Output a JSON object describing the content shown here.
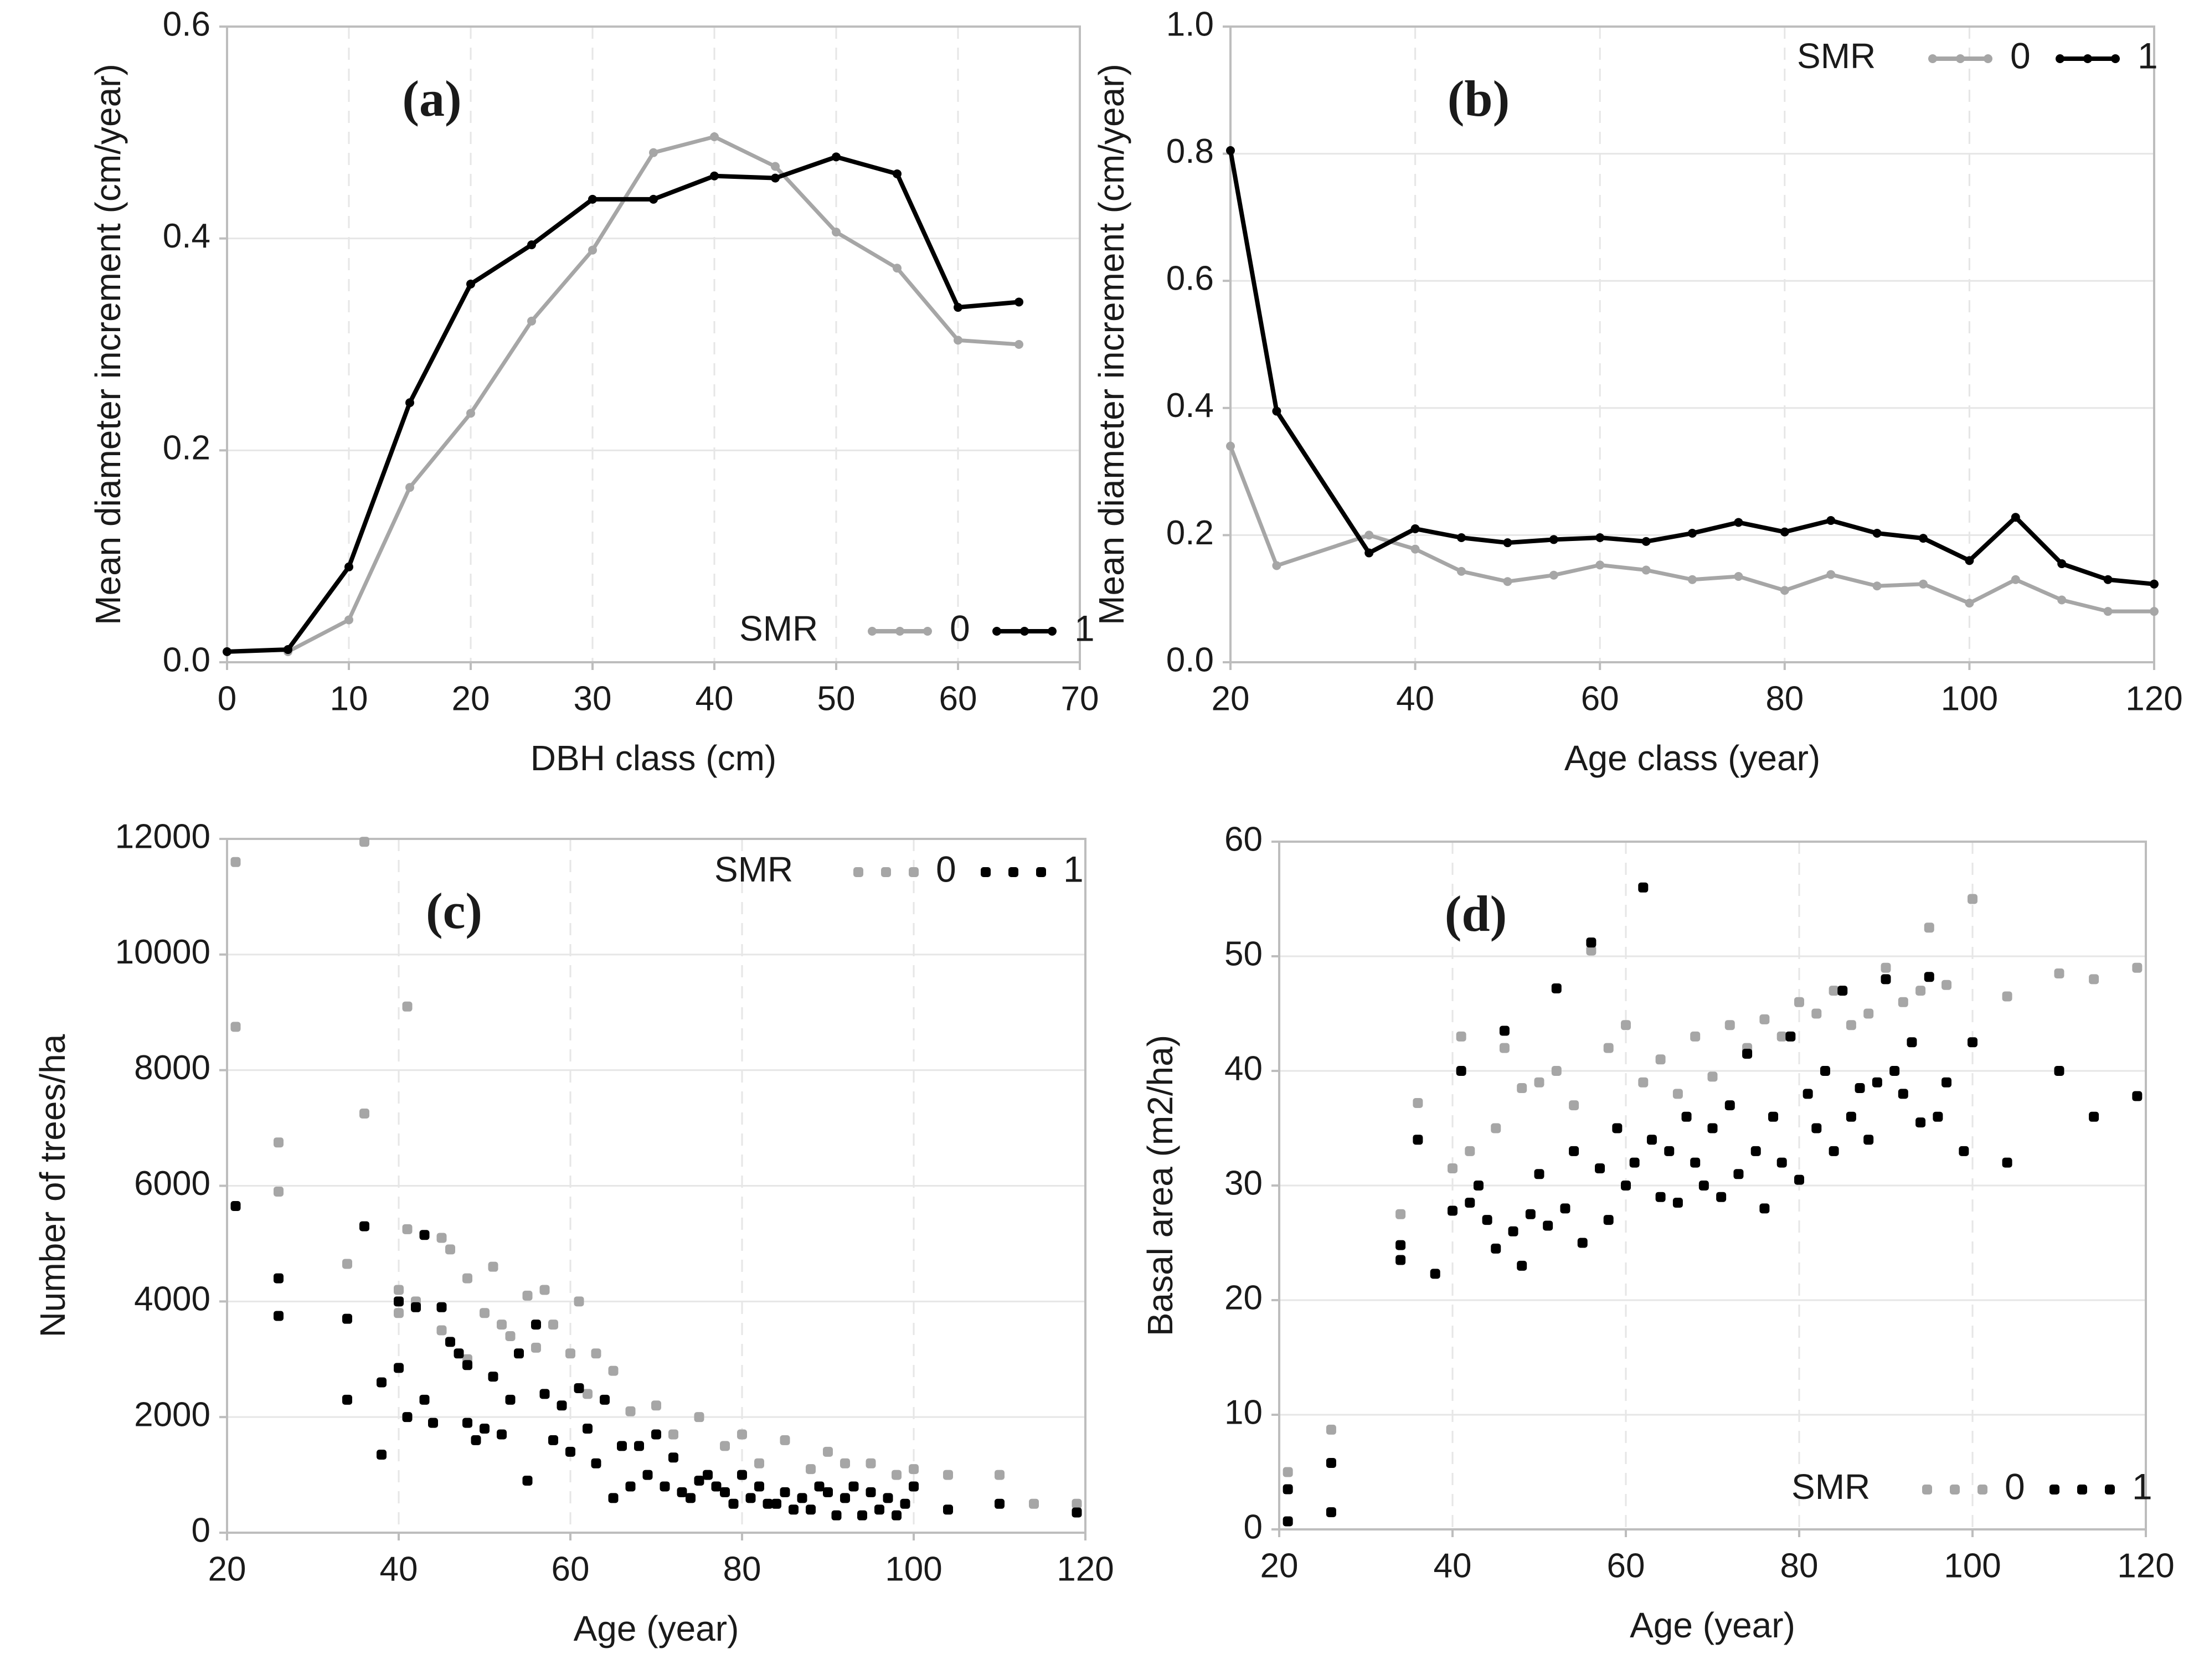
{
  "colors": {
    "smr0": "#a6a6a6",
    "smr1": "#000000",
    "grid": "#e6e6e6",
    "axis": "#bdbdbd",
    "text": "#1a1a1a"
  },
  "chart_data": [
    {
      "id": "a",
      "type": "line",
      "panel_label": "(a)",
      "xlabel": "DBH class (cm)",
      "ylabel": "Mean diameter increment (cm/year)",
      "xlim": [
        0,
        70
      ],
      "ylim": [
        0,
        0.6
      ],
      "xticks": [
        0,
        10,
        20,
        30,
        40,
        50,
        60,
        70
      ],
      "yticks": [
        0,
        0.2,
        0.4,
        0.6
      ],
      "ytick_labels": [
        "0.0",
        "0.2",
        "0.4",
        "0.6"
      ],
      "legend": {
        "title": "SMR",
        "position": "bottom-right",
        "labels": [
          "0",
          "1"
        ]
      },
      "series": [
        {
          "name": "0",
          "x": [
            5,
            10,
            15,
            20,
            25,
            30,
            35,
            40,
            45,
            50,
            55,
            60,
            65
          ],
          "values": [
            0.01,
            0.04,
            0.165,
            0.235,
            0.322,
            0.389,
            0.481,
            0.496,
            0.468,
            0.406,
            0.372,
            0.304,
            0.3
          ]
        },
        {
          "name": "1",
          "x": [
            0,
            5,
            10,
            15,
            20,
            25,
            30,
            35,
            40,
            45,
            50,
            55,
            60,
            65
          ],
          "values": [
            0.01,
            0.012,
            0.09,
            0.245,
            0.357,
            0.394,
            0.437,
            0.437,
            0.459,
            0.457,
            0.477,
            0.461,
            0.335,
            0.34
          ]
        }
      ]
    },
    {
      "id": "b",
      "type": "line",
      "panel_label": "(b)",
      "xlabel": "Age class (year)",
      "ylabel": "Mean diameter increment (cm/year)",
      "xlim": [
        20,
        120
      ],
      "ylim": [
        0,
        1.0
      ],
      "xticks": [
        20,
        40,
        60,
        80,
        100,
        120
      ],
      "yticks": [
        0,
        0.2,
        0.4,
        0.6,
        0.8,
        1.0
      ],
      "ytick_labels": [
        "0.0",
        "0.2",
        "0.4",
        "0.6",
        "0.8",
        "1.0"
      ],
      "legend": {
        "title": "SMR",
        "position": "top-right",
        "labels": [
          "0",
          "1"
        ]
      },
      "series": [
        {
          "name": "0",
          "x": [
            20,
            25,
            35,
            40,
            45,
            50,
            55,
            60,
            65,
            70,
            75,
            80,
            85,
            90,
            95,
            100,
            105,
            110,
            115,
            120
          ],
          "values": [
            0.34,
            0.152,
            0.2,
            0.178,
            0.143,
            0.127,
            0.137,
            0.153,
            0.145,
            0.13,
            0.135,
            0.113,
            0.138,
            0.12,
            0.123,
            0.093,
            0.13,
            0.098,
            0.08,
            0.08
          ]
        },
        {
          "name": "1",
          "x": [
            20,
            25,
            35,
            40,
            45,
            50,
            55,
            60,
            65,
            70,
            75,
            80,
            85,
            90,
            95,
            100,
            105,
            110,
            115,
            120
          ],
          "values": [
            0.805,
            0.395,
            0.172,
            0.21,
            0.196,
            0.188,
            0.193,
            0.196,
            0.19,
            0.203,
            0.22,
            0.205,
            0.223,
            0.203,
            0.195,
            0.16,
            0.228,
            0.155,
            0.13,
            0.123
          ]
        }
      ]
    },
    {
      "id": "c",
      "type": "scatter",
      "panel_label": "(c)",
      "xlabel": "Age (year)",
      "ylabel": "Number of trees/ha",
      "xlim": [
        20,
        120
      ],
      "ylim": [
        0,
        12000
      ],
      "xticks": [
        20,
        40,
        60,
        80,
        100,
        120
      ],
      "yticks": [
        0,
        2000,
        4000,
        6000,
        8000,
        10000,
        12000
      ],
      "ytick_labels": [
        "0",
        "2000",
        "4000",
        "6000",
        "8000",
        "10000",
        "12000"
      ],
      "legend": {
        "title": "SMR",
        "position": "top-right",
        "labels": [
          "0",
          "1"
        ]
      },
      "series": [
        {
          "name": "0",
          "x": [
            21,
            21,
            26,
            26,
            34,
            36,
            36,
            40,
            40,
            41,
            41,
            42,
            45,
            45,
            46,
            48,
            48,
            50,
            51,
            52,
            53,
            55,
            56,
            57,
            58,
            60,
            61,
            62,
            63,
            65,
            67,
            70,
            72,
            75,
            78,
            80,
            82,
            85,
            88,
            90,
            92,
            95,
            98,
            100,
            104,
            110,
            114,
            119
          ],
          "values": [
            11600,
            8750,
            6750,
            5900,
            4650,
            11950,
            7250,
            4200,
            3800,
            9100,
            5250,
            4000,
            5100,
            3500,
            4900,
            4400,
            3000,
            3800,
            4600,
            3600,
            3400,
            4100,
            3200,
            4200,
            3600,
            3100,
            4000,
            2400,
            3100,
            2800,
            2100,
            2200,
            1700,
            2000,
            1500,
            1700,
            1200,
            1600,
            1100,
            1400,
            1200,
            1200,
            1000,
            1100,
            1000,
            1000,
            500,
            500
          ]
        },
        {
          "name": "1",
          "x": [
            21,
            26,
            26,
            34,
            34,
            36,
            38,
            38,
            40,
            40,
            41,
            42,
            43,
            43,
            44,
            45,
            46,
            47,
            48,
            48,
            49,
            50,
            51,
            52,
            53,
            54,
            55,
            56,
            57,
            58,
            59,
            60,
            61,
            62,
            63,
            64,
            65,
            66,
            67,
            68,
            69,
            70,
            71,
            72,
            73,
            74,
            75,
            76,
            77,
            78,
            79,
            80,
            81,
            82,
            83,
            84,
            85,
            86,
            87,
            88,
            89,
            90,
            91,
            92,
            93,
            94,
            95,
            96,
            97,
            98,
            99,
            100,
            104,
            110,
            119
          ],
          "values": [
            5650,
            4400,
            3750,
            3700,
            2300,
            5300,
            1350,
            2600,
            4000,
            2850,
            2000,
            3900,
            5150,
            2300,
            1900,
            3900,
            3300,
            3100,
            1900,
            2900,
            1600,
            1800,
            2700,
            1700,
            2300,
            3100,
            900,
            3600,
            2400,
            1600,
            2200,
            1400,
            2500,
            1800,
            1200,
            2300,
            600,
            1500,
            800,
            1500,
            1000,
            1700,
            800,
            1300,
            700,
            600,
            900,
            1000,
            800,
            700,
            500,
            1000,
            600,
            800,
            500,
            500,
            700,
            400,
            600,
            400,
            800,
            700,
            300,
            600,
            800,
            300,
            700,
            400,
            600,
            300,
            500,
            800,
            400,
            500,
            350
          ]
        }
      ]
    },
    {
      "id": "d",
      "type": "scatter",
      "panel_label": "(d)",
      "xlabel": "Age (year)",
      "ylabel": "Basal area (m2/ha)",
      "xlim": [
        20,
        120
      ],
      "ylim": [
        0,
        60
      ],
      "xticks": [
        20,
        40,
        60,
        80,
        100,
        120
      ],
      "yticks": [
        0,
        10,
        20,
        30,
        40,
        50,
        60
      ],
      "ytick_labels": [
        "0",
        "10",
        "20",
        "30",
        "40",
        "50",
        "60"
      ],
      "legend": {
        "title": "SMR",
        "position": "bottom-right",
        "labels": [
          "0",
          "1"
        ]
      },
      "series": [
        {
          "name": "0",
          "x": [
            21,
            26,
            34,
            36,
            40,
            41,
            42,
            45,
            46,
            48,
            50,
            52,
            54,
            56,
            58,
            60,
            62,
            64,
            66,
            68,
            70,
            72,
            74,
            76,
            78,
            80,
            82,
            84,
            86,
            88,
            90,
            92,
            94,
            95,
            97,
            100,
            104,
            110,
            114,
            119
          ],
          "values": [
            5,
            8.7,
            27.5,
            37.2,
            31.5,
            43,
            33,
            35,
            42,
            38.5,
            39,
            40,
            37,
            50.5,
            42,
            44,
            39,
            41,
            38,
            43,
            39.5,
            44,
            42,
            44.5,
            43,
            46,
            45,
            47,
            44,
            45,
            49,
            46,
            47,
            52.5,
            47.5,
            55,
            46.5,
            48.5,
            48,
            49
          ]
        },
        {
          "name": "1",
          "x": [
            21,
            21,
            26,
            26,
            34,
            34,
            36,
            38,
            40,
            41,
            42,
            43,
            44,
            45,
            46,
            47,
            48,
            49,
            50,
            51,
            52,
            53,
            54,
            55,
            56,
            57,
            58,
            59,
            60,
            61,
            62,
            63,
            64,
            65,
            66,
            67,
            68,
            69,
            70,
            71,
            72,
            73,
            74,
            75,
            76,
            77,
            78,
            79,
            80,
            81,
            82,
            83,
            84,
            85,
            86,
            87,
            88,
            89,
            90,
            91,
            92,
            93,
            94,
            95,
            96,
            97,
            99,
            100,
            104,
            110,
            114,
            119
          ],
          "values": [
            3.5,
            0.7,
            5.8,
            1.5,
            24.8,
            23.5,
            34,
            22.3,
            27.8,
            40,
            28.5,
            30,
            27,
            24.5,
            43.5,
            26,
            23,
            27.5,
            31,
            26.5,
            47.2,
            28,
            33,
            25,
            51.2,
            31.5,
            27,
            35,
            30,
            32,
            56,
            34,
            29,
            33,
            28.5,
            36,
            32,
            30,
            35,
            29,
            37,
            31,
            41.5,
            33,
            28,
            36,
            32,
            43,
            30.5,
            38,
            35,
            40,
            33,
            47,
            36,
            38.5,
            34,
            39,
            48,
            40,
            38,
            42.5,
            35.5,
            48.2,
            36,
            39,
            33,
            42.5,
            32,
            40,
            36,
            37.8
          ]
        }
      ]
    }
  ]
}
